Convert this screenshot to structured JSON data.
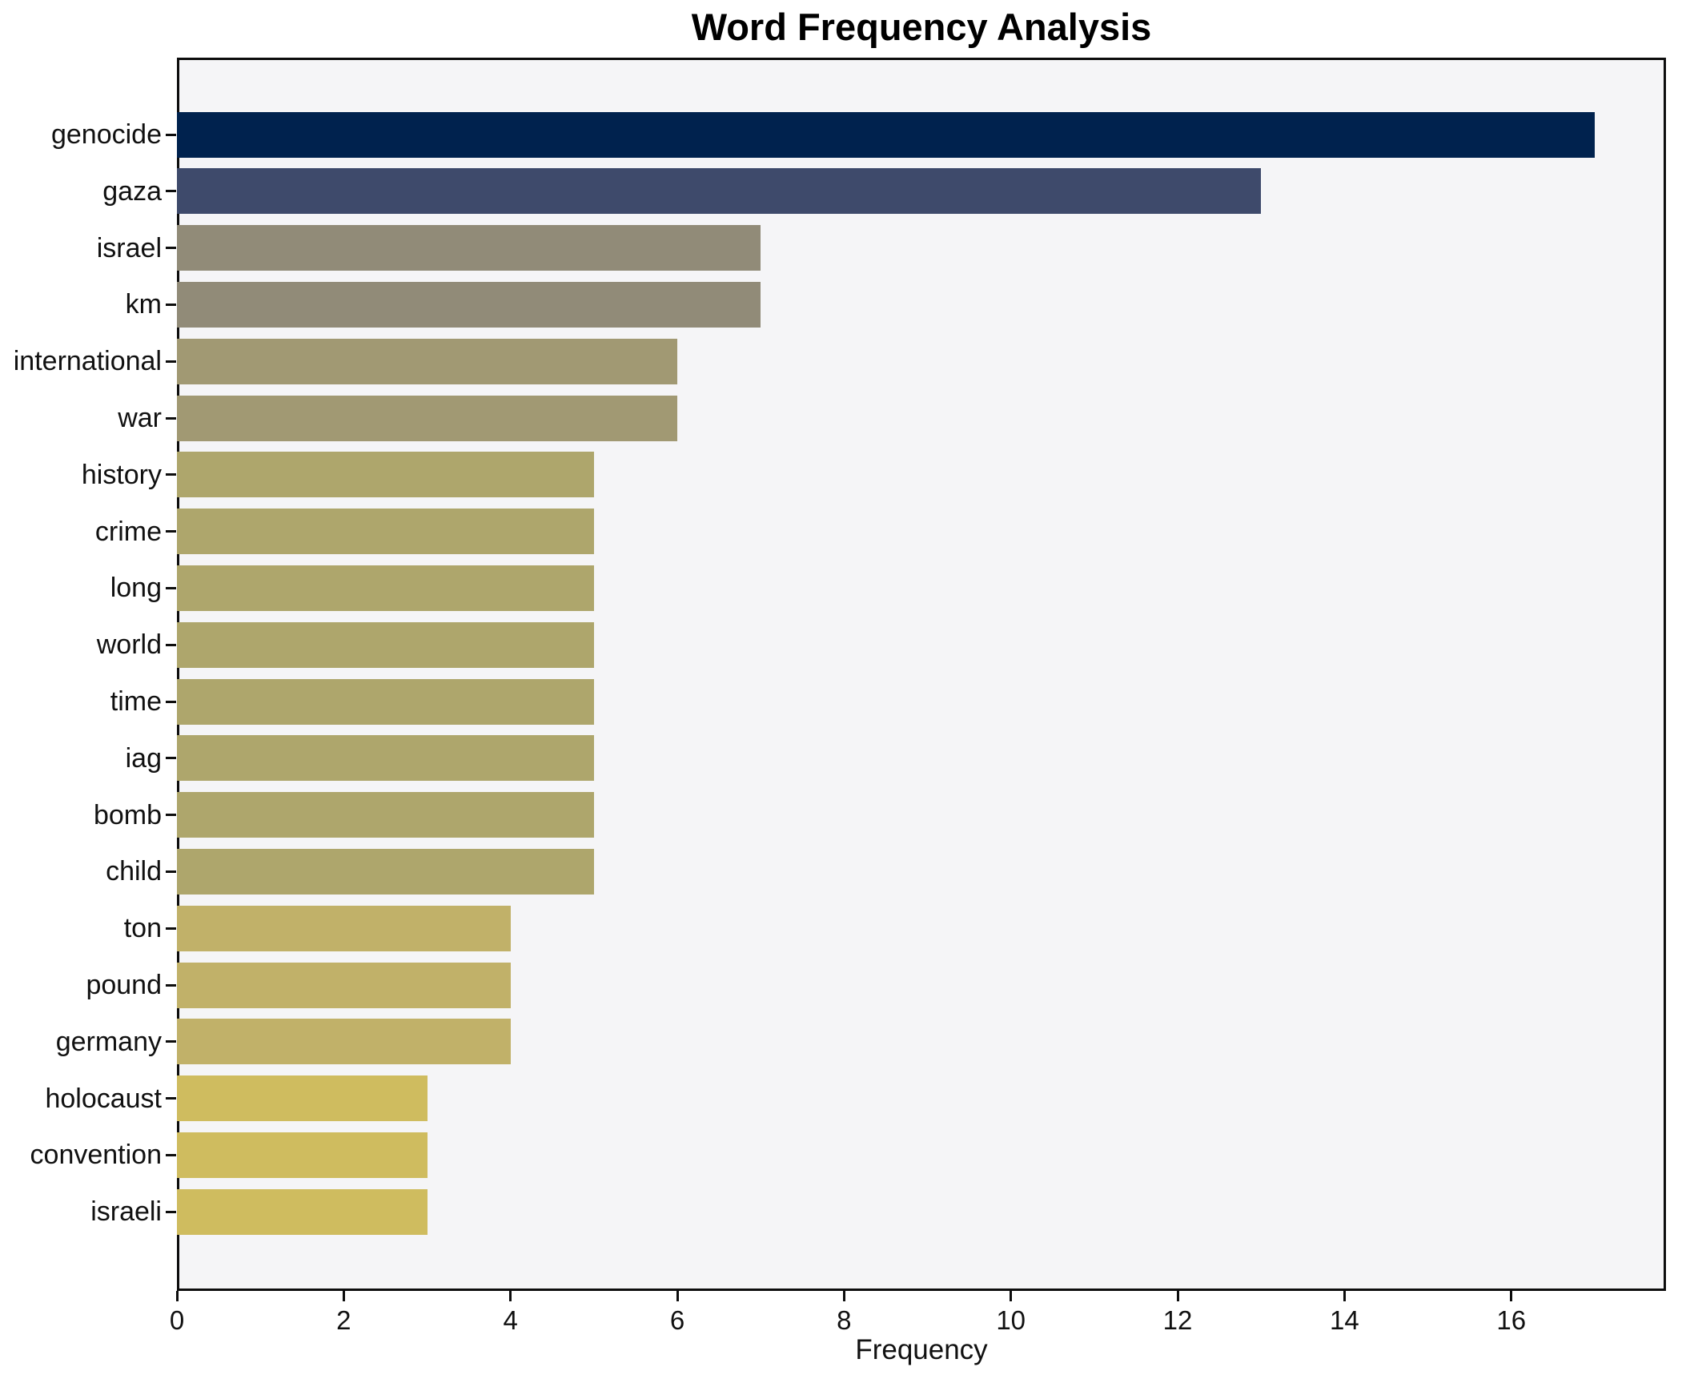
{
  "chart_data": {
    "type": "bar",
    "orientation": "horizontal",
    "title": "Word Frequency Analysis",
    "xlabel": "Frequency",
    "ylabel": "",
    "categories": [
      "genocide",
      "gaza",
      "israel",
      "km",
      "international",
      "war",
      "history",
      "crime",
      "long",
      "world",
      "time",
      "iag",
      "bomb",
      "child",
      "ton",
      "pound",
      "germany",
      "holocaust",
      "convention",
      "israeli"
    ],
    "values": [
      17,
      13,
      7,
      7,
      6,
      6,
      5,
      5,
      5,
      5,
      5,
      5,
      5,
      5,
      4,
      4,
      4,
      3,
      3,
      3
    ],
    "bar_colors": [
      "#00224e",
      "#3e4a6b",
      "#918b78",
      "#918b78",
      "#a19973",
      "#a19973",
      "#aea66c",
      "#aea66c",
      "#aea66c",
      "#aea66c",
      "#aea66c",
      "#aea66c",
      "#aea66c",
      "#aea66c",
      "#c1b169",
      "#c1b169",
      "#c1b169",
      "#cfbc5f",
      "#cfbc5f",
      "#cfbc5f"
    ],
    "x_ticks": [
      0,
      2,
      4,
      6,
      8,
      10,
      12,
      14,
      16
    ],
    "xlim": [
      0,
      17.85
    ],
    "grid": false,
    "legend_position": "none",
    "plot_background": "#f5f5f7",
    "figure_background": "#ffffff",
    "spine_color": "#0d0d0d"
  }
}
